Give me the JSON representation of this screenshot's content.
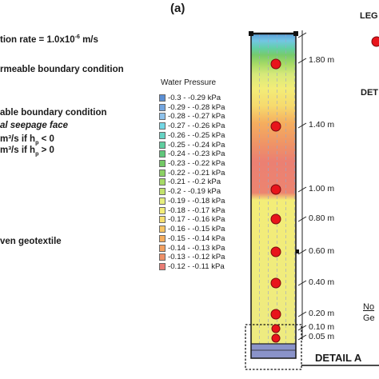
{
  "panel_label": "(a)",
  "left_text": {
    "infiltration_rate": "tion rate = 1.0x10",
    "infiltration_rate_exp": "-6",
    "infiltration_rate_unit": " m/s",
    "impermeable": "rmeable boundary condition",
    "permeable": "able boundary condition",
    "seepage_face": "al seepage face",
    "seepage_line1_a": "m³/s if h",
    "seepage_line1_sub": "p",
    "seepage_line1_b": " < 0",
    "seepage_line2_a": "m³/s if h",
    "seepage_line2_sub": "p",
    "seepage_line2_b": " > 0",
    "geotextile": "ven geotextile"
  },
  "legend": {
    "title": "Water Pressure",
    "items": [
      {
        "label": "-0.3 - -0.29 kPa",
        "color": "#5b8fd4"
      },
      {
        "label": "-0.29 - -0.28 kPa",
        "color": "#74a6e0"
      },
      {
        "label": "-0.28 - -0.27 kPa",
        "color": "#8ec2ec"
      },
      {
        "label": "-0.27 - -0.26 kPa",
        "color": "#73d7e5"
      },
      {
        "label": "-0.26 - -0.25 kPa",
        "color": "#66d3c4"
      },
      {
        "label": "-0.25 - -0.24 kPa",
        "color": "#5fce9f"
      },
      {
        "label": "-0.24 - -0.23 kPa",
        "color": "#5fc77b"
      },
      {
        "label": "-0.23 - -0.22 kPa",
        "color": "#72c865"
      },
      {
        "label": "-0.22 - -0.21 kPa",
        "color": "#8cd163"
      },
      {
        "label": "-0.21 - -0.2 kPa",
        "color": "#a6da66"
      },
      {
        "label": "-0.2 - -0.19 kPa",
        "color": "#c2e26d"
      },
      {
        "label": "-0.19 - -0.18 kPa",
        "color": "#e6ef7f"
      },
      {
        "label": "-0.18 - -0.17 kPa",
        "color": "#f3ed78"
      },
      {
        "label": "-0.17 - -0.16 kPa",
        "color": "#f6de70"
      },
      {
        "label": "-0.16 - -0.15 kPa",
        "color": "#f7c565"
      },
      {
        "label": "-0.15 - -0.14 kPa",
        "color": "#f5ad5e"
      },
      {
        "label": "-0.14 - -0.13 kPa",
        "color": "#f2a060"
      },
      {
        "label": "-0.13 - -0.12 kPa",
        "color": "#ee9068"
      },
      {
        "label": "-0.12 - -0.11 kPa",
        "color": "#e97d76"
      }
    ]
  },
  "elevations": [
    "1.80 m",
    "1.40 m",
    "1.00 m",
    "0.80 m",
    "0.60 m",
    "0.40 m",
    "0.20 m",
    "0.10 m",
    "0.05 m"
  ],
  "right_text": {
    "legend_partial": "LEG",
    "detail_partial": "DET",
    "note_partial_1": "No",
    "note_partial_2": "Ge",
    "detail_a": "DETAIL A"
  },
  "colors": {
    "sensor": "#e8141b",
    "column_frame": "#222222",
    "geotextile": "#8a93c9"
  }
}
